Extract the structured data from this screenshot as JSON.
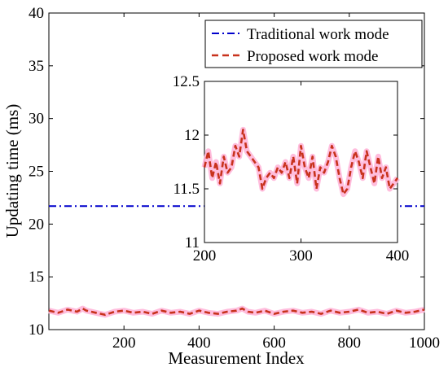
{
  "chart_data": [
    {
      "type": "line",
      "xlabel": "Measurement Index",
      "ylabel": "Updating time (ms)",
      "xlim": [
        0,
        1000
      ],
      "ylim": [
        10,
        40
      ],
      "x_ticks": [
        200,
        400,
        600,
        800,
        1000
      ],
      "y_ticks": [
        10,
        15,
        20,
        25,
        30,
        35,
        40
      ],
      "grid": false,
      "legend_position": "top-right",
      "series": [
        {
          "name": "Traditional work mode",
          "style": "dash-dot",
          "color": "#0000cc",
          "x": [
            0,
            1000
          ],
          "values": [
            21.7,
            21.7
          ]
        },
        {
          "name": "Proposed work mode",
          "style": "dashed",
          "color": "#c8321c",
          "band_color": "#ffb6d9",
          "x": [
            0,
            25,
            50,
            75,
            90,
            100,
            125,
            150,
            175,
            200,
            225,
            250,
            275,
            300,
            325,
            350,
            375,
            400,
            425,
            450,
            475,
            500,
            515,
            530,
            550,
            575,
            600,
            625,
            650,
            675,
            700,
            725,
            750,
            775,
            800,
            825,
            850,
            875,
            900,
            925,
            950,
            975,
            1000
          ],
          "values": [
            11.8,
            11.6,
            11.9,
            11.7,
            12.0,
            11.8,
            11.6,
            11.4,
            11.7,
            11.8,
            11.6,
            11.7,
            11.5,
            11.8,
            11.6,
            11.7,
            11.5,
            11.8,
            11.6,
            11.5,
            11.7,
            11.8,
            12.0,
            11.7,
            11.6,
            11.8,
            11.5,
            11.7,
            11.8,
            11.6,
            11.7,
            11.5,
            11.8,
            11.6,
            11.7,
            11.9,
            11.6,
            11.7,
            11.5,
            11.8,
            11.6,
            11.7,
            11.9
          ]
        }
      ]
    },
    {
      "type": "line",
      "xlabel": "",
      "ylabel": "",
      "xlim": [
        200,
        400
      ],
      "ylim": [
        11,
        12.5
      ],
      "x_ticks": [
        200,
        300,
        400
      ],
      "y_ticks": [
        11,
        11.5,
        12,
        12.5
      ],
      "grid": false,
      "series": [
        {
          "name": "Proposed work mode",
          "style": "dashed",
          "color": "#c8321c",
          "band_color": "#ffb6d9",
          "x": [
            200,
            204,
            208,
            212,
            216,
            220,
            224,
            228,
            232,
            236,
            240,
            244,
            248,
            252,
            256,
            260,
            264,
            268,
            272,
            276,
            280,
            284,
            288,
            292,
            296,
            300,
            304,
            308,
            312,
            316,
            320,
            324,
            328,
            332,
            336,
            340,
            344,
            348,
            352,
            356,
            360,
            364,
            368,
            372,
            376,
            380,
            384,
            388,
            392,
            396,
            400
          ],
          "values": [
            11.7,
            11.85,
            11.6,
            11.75,
            11.55,
            11.8,
            11.65,
            11.7,
            11.9,
            11.8,
            12.05,
            11.85,
            11.8,
            11.75,
            11.7,
            11.5,
            11.6,
            11.65,
            11.6,
            11.7,
            11.65,
            11.75,
            11.6,
            11.8,
            11.55,
            11.9,
            11.7,
            11.6,
            11.8,
            11.5,
            11.7,
            11.65,
            11.75,
            11.9,
            11.8,
            11.6,
            11.45,
            11.5,
            11.7,
            11.85,
            11.75,
            11.6,
            11.85,
            11.7,
            11.55,
            11.8,
            11.6,
            11.7,
            11.5,
            11.55,
            11.6
          ]
        }
      ]
    }
  ]
}
